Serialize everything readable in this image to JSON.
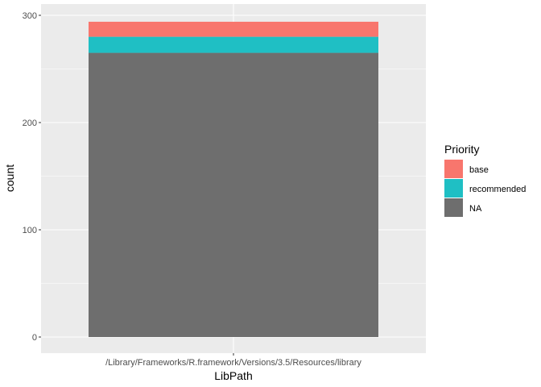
{
  "chart_data": {
    "type": "bar",
    "stacked": true,
    "categories": [
      "/Library/Frameworks/R.framework/Versions/3.5/Resources/library"
    ],
    "series": [
      {
        "name": "NA",
        "values": [
          265
        ],
        "color": "#6E6E6E"
      },
      {
        "name": "recommended",
        "values": [
          15
        ],
        "color": "#1FBFC4"
      },
      {
        "name": "base",
        "values": [
          14
        ],
        "color": "#F8766D"
      }
    ],
    "xlabel": "LibPath",
    "ylabel": "count",
    "ylim": [
      0,
      300
    ],
    "yticks": [
      "0",
      "100",
      "200",
      "300"
    ],
    "grid": true,
    "panel_background": "#EBEBEB",
    "gridline_color": "#FFFFFF",
    "legend": {
      "title": "Priority",
      "placement": "right",
      "items": [
        {
          "label": "base",
          "color": "#F8766D"
        },
        {
          "label": "recommended",
          "color": "#1FBFC4"
        },
        {
          "label": "NA",
          "color": "#6E6E6E"
        }
      ]
    }
  }
}
